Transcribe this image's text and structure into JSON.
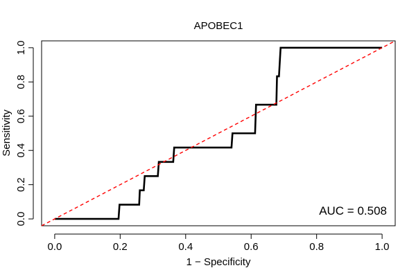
{
  "chart_data": {
    "type": "line",
    "title": "APOBEC1",
    "xlabel": "1 − Specificity",
    "ylabel": "Sensitivity",
    "xlim": [
      -0.04,
      1.04
    ],
    "ylim": [
      -0.04,
      1.04
    ],
    "x_ticks": [
      0.0,
      0.2,
      0.4,
      0.6,
      0.8,
      1.0
    ],
    "x_tick_labels": [
      "0.0",
      "0.2",
      "0.4",
      "0.6",
      "0.8",
      "1.0"
    ],
    "y_ticks": [
      0.0,
      0.2,
      0.4,
      0.6,
      0.8,
      1.0
    ],
    "y_tick_labels": [
      "0.0",
      "0.2",
      "0.4",
      "0.6",
      "0.8",
      "1.0"
    ],
    "grid": false,
    "series": [
      {
        "color": "#000000",
        "style": "solid",
        "x": [
          0.0,
          0.195,
          0.198,
          0.258,
          0.26,
          0.272,
          0.275,
          0.315,
          0.318,
          0.362,
          0.365,
          0.54,
          0.543,
          0.612,
          0.615,
          0.677,
          0.679,
          0.685,
          0.69,
          1.0
        ],
        "y": [
          0.0,
          0.0,
          0.083,
          0.083,
          0.167,
          0.167,
          0.25,
          0.25,
          0.333,
          0.333,
          0.417,
          0.417,
          0.5,
          0.5,
          0.667,
          0.667,
          0.833,
          0.833,
          1.0,
          1.0
        ]
      },
      {
        "color": "#ff0000",
        "style": "dashed",
        "x": [
          -0.04,
          1.04
        ],
        "y": [
          -0.04,
          1.04
        ]
      }
    ],
    "annotations": [
      {
        "text": "AUC = 0.508",
        "position": "bottom-right"
      }
    ]
  }
}
